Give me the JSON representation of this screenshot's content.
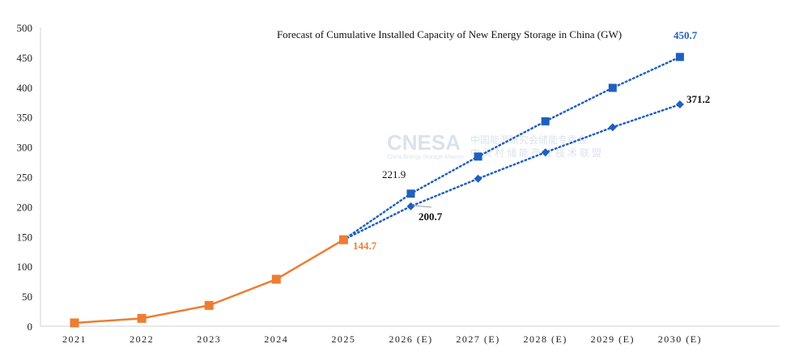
{
  "chart_data": {
    "type": "line",
    "title": "Forecast of Cumulative Installed Capacity of New Energy Storage in China (GW)",
    "xlabel": "",
    "ylabel": "",
    "categories": [
      "2021",
      "2022",
      "2023",
      "2024",
      "2025",
      "2026 (E)",
      "2027 (E)",
      "2028 (E)",
      "2029 (E)",
      "2030 (E)"
    ],
    "ylim": [
      0,
      500
    ],
    "yticks": [
      "0",
      "50",
      "100",
      "150",
      "200",
      "250",
      "300",
      "350",
      "400",
      "450",
      "500"
    ],
    "grid": false,
    "series": [
      {
        "style": "solid",
        "marker": "square",
        "color": "#ED7D31",
        "values": [
          5.5,
          13.1,
          34.8,
          78.6,
          144.7,
          null,
          null,
          null,
          null,
          null
        ]
      },
      {
        "style": "dotted",
        "marker": "square",
        "color": "#1F5FBF",
        "values": [
          null,
          null,
          null,
          null,
          144.7,
          221.9,
          284,
          343,
          399,
          450.7
        ]
      },
      {
        "style": "dotted",
        "marker": "diamond",
        "color": "#1F5FBF",
        "values": [
          null,
          null,
          null,
          null,
          144.7,
          200.7,
          247,
          291,
          333,
          371.2
        ]
      }
    ],
    "data_labels": [
      {
        "text": "144.7",
        "color": "#ED7D31"
      },
      {
        "text": "221.9",
        "color": "#111111"
      },
      {
        "text": "200.7",
        "color": "#111111"
      },
      {
        "text": "450.7",
        "color": "#1F5FBF"
      },
      {
        "text": "371.2",
        "color": "#111111"
      }
    ]
  },
  "watermark": {
    "logo": "CNESA",
    "sub": "China Energy Storage Alliance",
    "cn1": "中国能源研究会储能专委会",
    "cn2": "中关村储能产业技术联盟"
  }
}
